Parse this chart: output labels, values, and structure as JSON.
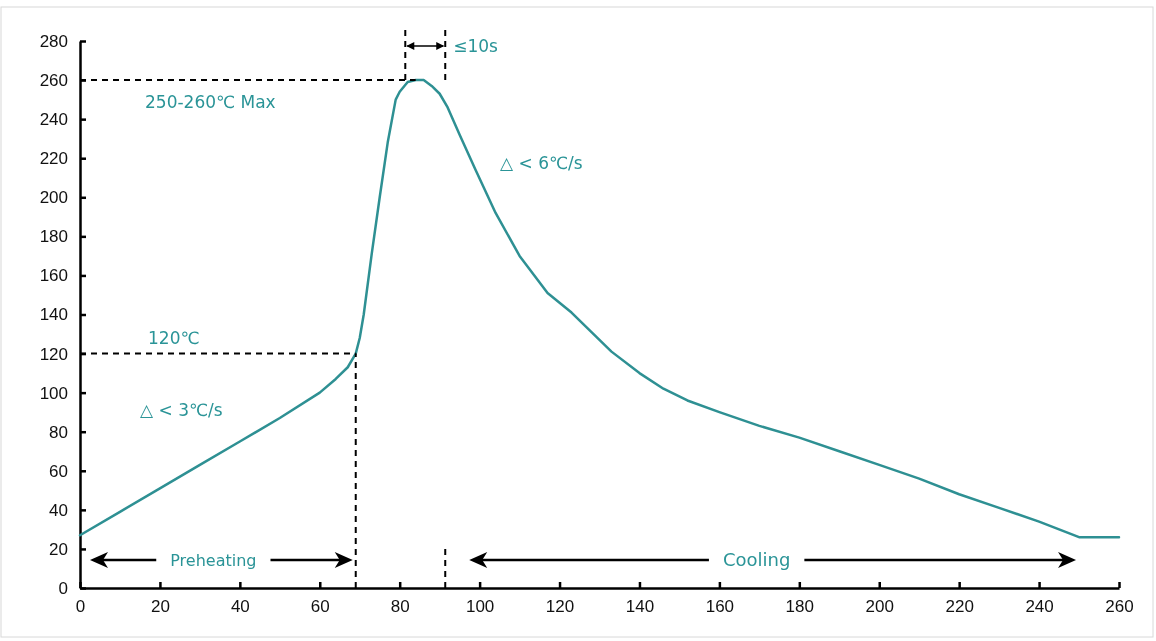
{
  "chart_data": {
    "type": "line",
    "series": [
      {
        "color": "#2e9093",
        "x": [
          0,
          10,
          20,
          30,
          40,
          50,
          60,
          64,
          67,
          69,
          70,
          71,
          73,
          75,
          77,
          79,
          80,
          82,
          84,
          86,
          88,
          90,
          92,
          95,
          99,
          104,
          110,
          117,
          123,
          128,
          133,
          140,
          146,
          152,
          160,
          170,
          180,
          190,
          200,
          210,
          220,
          230,
          240,
          250,
          260
        ],
        "values": [
          27,
          39,
          51,
          63,
          75,
          87,
          100,
          107,
          113,
          120,
          128,
          140,
          171,
          200,
          228,
          250,
          254,
          259,
          260,
          260,
          257,
          253,
          246,
          232,
          214,
          192,
          170,
          151,
          141,
          131,
          121,
          110,
          102,
          96,
          90,
          83,
          77,
          70,
          63,
          56,
          48,
          41,
          34,
          26,
          26
        ]
      }
    ],
    "xlim": [
      0,
      260
    ],
    "xticks": [
      0,
      20,
      40,
      60,
      80,
      100,
      120,
      140,
      160,
      180,
      200,
      220,
      240,
      260
    ],
    "ylim": [
      0,
      280
    ],
    "yticks": [
      0,
      20,
      40,
      60,
      80,
      100,
      120,
      140,
      160,
      180,
      200,
      220,
      240,
      260,
      280
    ],
    "grid": false,
    "line_style": "solid",
    "ref_lines": [
      {
        "axis": "y",
        "value": 260,
        "label": "250-260℃ Max",
        "line_style": "dashed"
      },
      {
        "axis": "y",
        "value": 120,
        "label": "120℃",
        "line_style": "dashed"
      },
      {
        "axis": "x",
        "value": 69,
        "label": null,
        "line_style": "dashed"
      }
    ],
    "annotations": [
      "△ < 3℃/s",
      "△ < 6℃/s",
      "Preheating",
      "Cooling",
      "≤10s"
    ]
  }
}
